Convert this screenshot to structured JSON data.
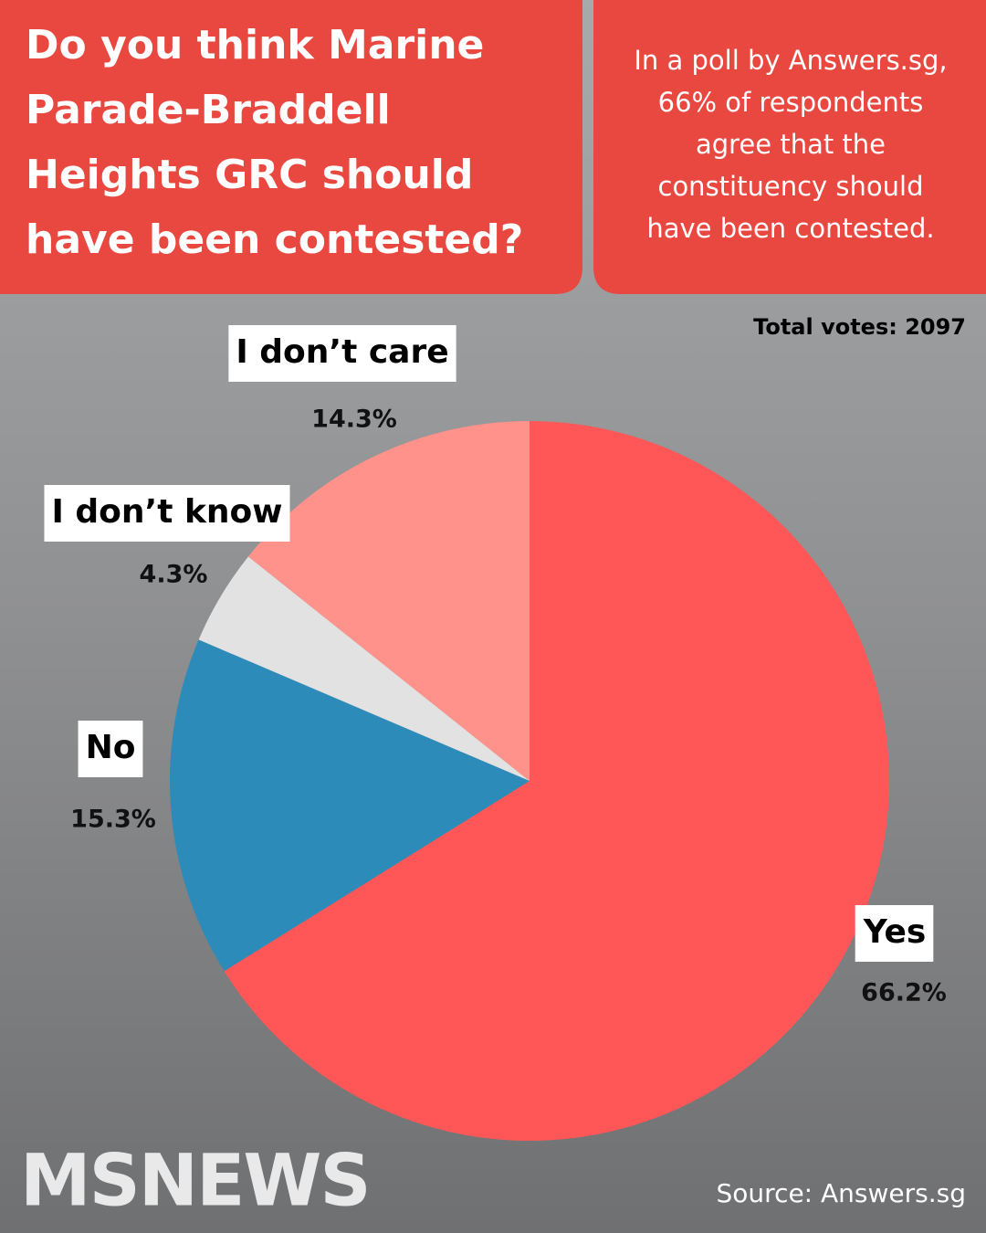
{
  "chart_data": {
    "type": "pie",
    "title": [
      "Do you think Marine",
      "Parade-Braddell",
      "Heights GRC should",
      "have been contested?"
    ],
    "subtitle": [
      "In a poll by Answers.sg,",
      "66% of respondents",
      "agree that the",
      "constituency should",
      "have been contested."
    ],
    "annotation": "Total votes: 2097",
    "source": "Source: Answers.sg",
    "logo": "MSNEWS",
    "categories": [
      "Yes",
      "No",
      "I don’t know",
      "I don’t care"
    ],
    "values": [
      66.2,
      15.3,
      4.3,
      14.3
    ],
    "value_labels": [
      "66.2%",
      "15.3%",
      "4.3%",
      "14.3%"
    ],
    "colors": [
      "#ff5757",
      "#2d8bba",
      "#e2e2e2",
      "#ff928a"
    ]
  }
}
